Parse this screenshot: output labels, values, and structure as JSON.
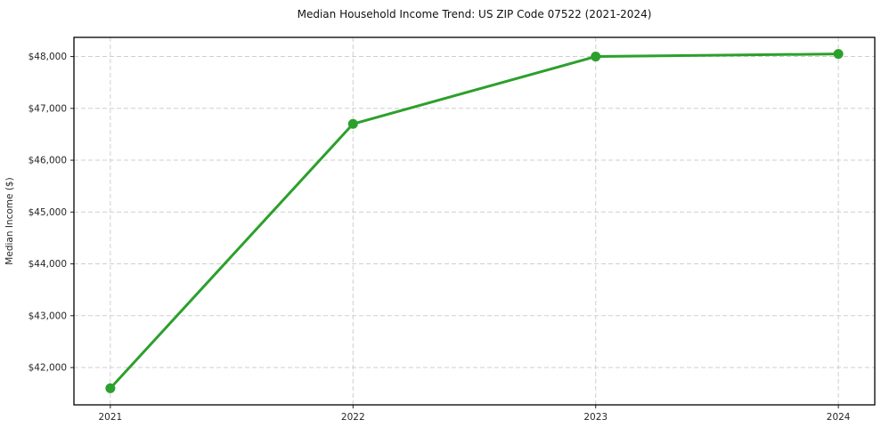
{
  "figure": {
    "title": "Median Household Income Trend: US ZIP Code 07522 (2021-2024)"
  },
  "chart_data": {
    "type": "line",
    "title": "Median Household Income Trend: US ZIP Code 07522 (2021-2024)",
    "xlabel": "",
    "ylabel": "Median Income ($)",
    "x": [
      2021,
      2022,
      2023,
      2024
    ],
    "xtick_labels": [
      "2021",
      "2022",
      "2023",
      "2024"
    ],
    "values": [
      41600,
      46700,
      48000,
      48050
    ],
    "ytick_values": [
      42000,
      43000,
      44000,
      45000,
      46000,
      47000,
      48000
    ],
    "ytick_labels": [
      "$42,000",
      "$43,000",
      "$44,000",
      "$45,000",
      "$46,000",
      "$47,000",
      "$48,000"
    ],
    "xlim": [
      2020.85,
      2024.15
    ],
    "ylim": [
      41280,
      48370
    ],
    "grid": true,
    "grid_style": "dashed",
    "grid_color": "#cfcfcf",
    "line_color": "#2ca02c",
    "marker": "circle",
    "marker_color": "#2ca02c",
    "legend_position": "none"
  }
}
